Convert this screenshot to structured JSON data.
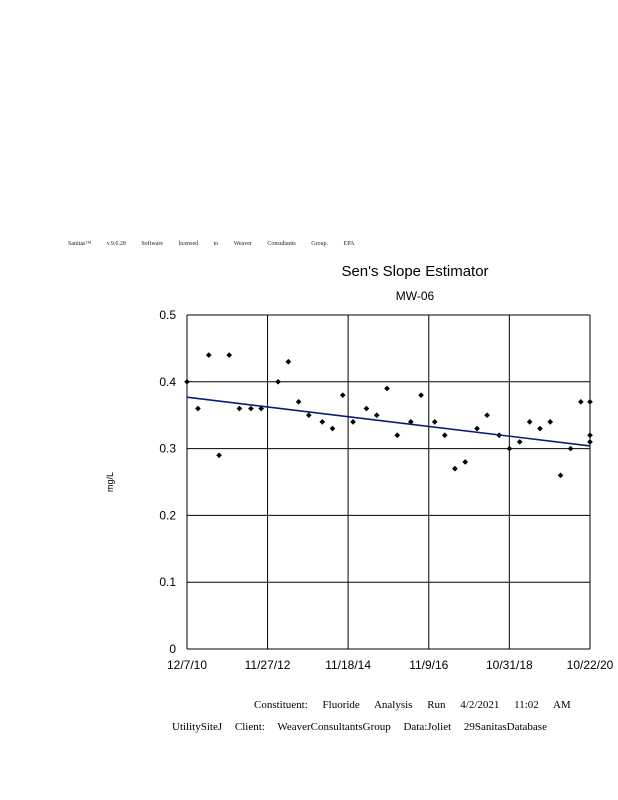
{
  "header": {
    "software_line": "Sanitas™ v.9.6.28 Software licensed to Weaver Consultants Group. EPA"
  },
  "chart_data": {
    "type": "scatter",
    "title": "Sen's Slope Estimator",
    "subtitle": "MW-06",
    "xlabel": "",
    "ylabel": "mg/L",
    "ylim": [
      0,
      0.5
    ],
    "xlim": [
      "12/7/10",
      "10/22/20"
    ],
    "yticks": [
      "0",
      "0.1",
      "0.2",
      "0.3",
      "0.4",
      "0.5"
    ],
    "xticks": [
      "12/7/10",
      "11/27/12",
      "11/18/14",
      "11/9/16",
      "10/31/18",
      "10/22/20"
    ],
    "grid": true,
    "legend": "none",
    "colors": {
      "points": "#000000",
      "trend": "#0b1a7a",
      "grid": "#000000"
    },
    "points": [
      {
        "x": "2010-12-07",
        "y": 0.4
      },
      {
        "x": "2011-03-15",
        "y": 0.36
      },
      {
        "x": "2011-06-20",
        "y": 0.44
      },
      {
        "x": "2011-09-20",
        "y": 0.29
      },
      {
        "x": "2011-12-20",
        "y": 0.44
      },
      {
        "x": "2012-03-20",
        "y": 0.36
      },
      {
        "x": "2012-07-01",
        "y": 0.36
      },
      {
        "x": "2012-10-01",
        "y": 0.36
      },
      {
        "x": "2013-03-01",
        "y": 0.4
      },
      {
        "x": "2013-06-01",
        "y": 0.43
      },
      {
        "x": "2013-09-01",
        "y": 0.37
      },
      {
        "x": "2013-12-01",
        "y": 0.35
      },
      {
        "x": "2014-04-01",
        "y": 0.34
      },
      {
        "x": "2014-07-01",
        "y": 0.33
      },
      {
        "x": "2014-10-01",
        "y": 0.38
      },
      {
        "x": "2015-01-01",
        "y": 0.34
      },
      {
        "x": "2015-05-01",
        "y": 0.36
      },
      {
        "x": "2015-08-01",
        "y": 0.35
      },
      {
        "x": "2015-11-01",
        "y": 0.39
      },
      {
        "x": "2016-02-01",
        "y": 0.32
      },
      {
        "x": "2016-06-01",
        "y": 0.34
      },
      {
        "x": "2016-09-01",
        "y": 0.38
      },
      {
        "x": "2017-01-01",
        "y": 0.34
      },
      {
        "x": "2017-04-01",
        "y": 0.32
      },
      {
        "x": "2017-07-01",
        "y": 0.27
      },
      {
        "x": "2017-10-01",
        "y": 0.28
      },
      {
        "x": "2018-01-15",
        "y": 0.33
      },
      {
        "x": "2018-04-15",
        "y": 0.35
      },
      {
        "x": "2018-08-01",
        "y": 0.32
      },
      {
        "x": "2018-11-01",
        "y": 0.3
      },
      {
        "x": "2019-02-01",
        "y": 0.31
      },
      {
        "x": "2019-05-01",
        "y": 0.34
      },
      {
        "x": "2019-08-01",
        "y": 0.33
      },
      {
        "x": "2019-11-01",
        "y": 0.34
      },
      {
        "x": "2020-02-01",
        "y": 0.26
      },
      {
        "x": "2020-05-01",
        "y": 0.3
      },
      {
        "x": "2020-08-01",
        "y": 0.37
      },
      {
        "x": "2020-11-01",
        "y": 0.37
      },
      {
        "x": "2021-02-01",
        "y": 0.32
      },
      {
        "x": "2021-04-01",
        "y": 0.31
      }
    ],
    "trend_line": {
      "start": {
        "x": "2010-12-07",
        "y": 0.377
      },
      "end": {
        "x": "2021-04-02",
        "y": 0.304
      }
    }
  },
  "footer": {
    "line1": "Constituent: Fluoride Analysis Run 4/2/2021 11:02 AM",
    "line2": "UtilitySiteJ Client: WeaverConsultantsGroup Data:Joliet 29SanitasDatabase"
  }
}
